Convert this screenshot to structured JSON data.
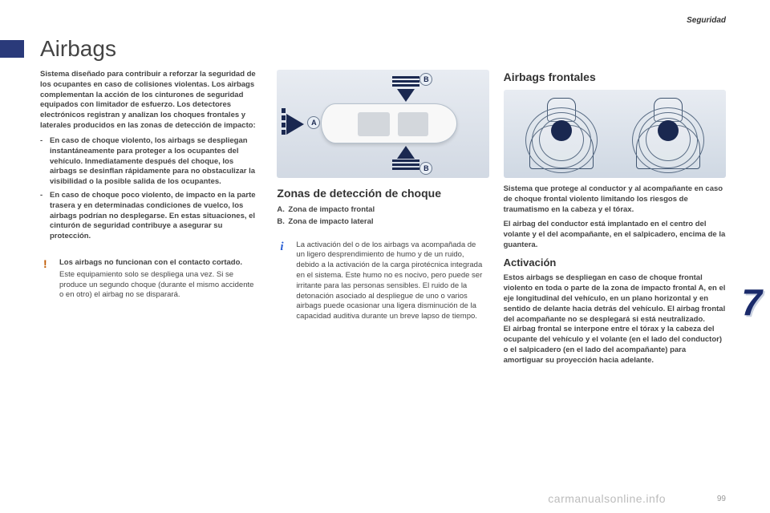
{
  "header": {
    "section": "Seguridad"
  },
  "title": "Airbags",
  "col1": {
    "intro": "Sistema diseñado para contribuir a reforzar la seguridad de los ocupantes en caso de colisiones violentas. Los airbags complementan la acción de los cinturones de seguridad equipados con limitador de esfuerzo. Los detectores electrónicos registran y analizan los choques frontales y laterales producidos en las zonas de detección de impacto:",
    "b1": "En caso de choque violento, los airbags se despliegan instantáneamente para proteger a los ocupantes del vehículo. Inmediatamente después del choque, los airbags se desinflan rápidamente para no obstaculizar la visibilidad o la posible salida de los ocupantes.",
    "b2": "En caso de choque poco violento, de impacto en la parte trasera y en determinadas condiciones de vuelco, los airbags podrían no desplegarse. En estas situaciones, el cinturón de seguridad contribuye a asegurar su protección.",
    "warn_bold": "Los airbags no funcionan con el contacto cortado.",
    "warn_body": "Este equipamiento solo se despliega una vez. Si se produce un segundo choque (durante el mismo accidente o en otro) el airbag no se disparará."
  },
  "col2": {
    "subheading": "Zonas de detección de choque",
    "legendA_key": "A.",
    "legendA": "Zona de impacto frontal",
    "legendB_key": "B.",
    "legendB": "Zona de impacto lateral",
    "info": "La activación del o de los airbags va acompañada de un ligero desprendimiento de humo y de un ruido, debido a la activación de la carga pirotécnica integrada en el sistema. Este humo no es nocivo, pero puede ser irritante para las personas sensibles.\nEl ruido de la detonación asociado al despliegue de uno o varios airbags puede ocasionar una ligera disminución de la capacidad auditiva durante un breve lapso de tiempo."
  },
  "col3": {
    "title": "Airbags frontales",
    "p1": "Sistema que protege al conductor y al acompañante en caso de choque frontal violento limitando los riesgos de traumatismo en la cabeza y el tórax.",
    "p2": "El airbag del conductor está implantado en el centro del volante y el del acompañante, en el salpicadero, encima de la guantera.",
    "act_title": "Activación",
    "act_body": "Estos airbags se despliegan en caso de choque frontal violento en toda o parte de la zona de impacto frontal A, en el eje longitudinal del vehículo, en un plano horizontal y en sentido de delante hacia detrás del vehículo. El airbag frontal del acompañante no se desplegará si está neutralizado.\nEl airbag frontal se interpone entre el tórax y la cabeza del ocupante del vehículo y el volante (en el lado del conductor) o el salpicadero (en el lado del acompañante) para amortiguar su proyección hacia adelante."
  },
  "chapter_number": "7",
  "footer": "carmanualsonline.info",
  "page_number": "99",
  "diagram": {
    "labels": {
      "A": "A",
      "B": "B"
    },
    "colors": {
      "arrow": "#1a2850",
      "bg_top": "#e8ecf2",
      "bg_bot": "#d2d9e3"
    }
  }
}
